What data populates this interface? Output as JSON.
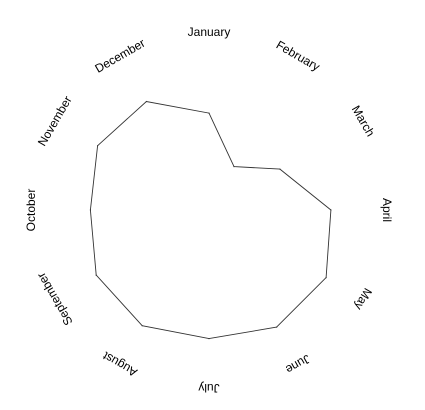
{
  "chart_data": {
    "type": "radar",
    "categories": [
      "January",
      "February",
      "March",
      "April",
      "May",
      "June",
      "July",
      "August",
      "September",
      "October",
      "November",
      "December"
    ],
    "series": [
      {
        "values": [
          0.58,
          0.3,
          0.49,
          0.73,
          0.81,
          0.81,
          0.77,
          0.8,
          0.78,
          0.71,
          0.77,
          0.75
        ]
      }
    ],
    "range": [
      0,
      1
    ],
    "grid": false,
    "line_color": "#333333",
    "fill_color": "#ffffff"
  }
}
